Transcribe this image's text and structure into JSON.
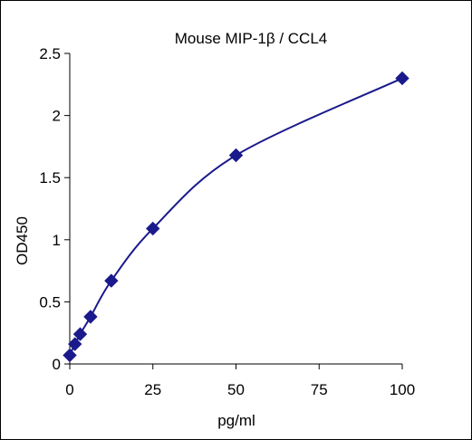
{
  "chart_data": {
    "type": "scatter",
    "title": "Mouse MIP-1β / CCL4",
    "xlabel": "pg/ml",
    "ylabel": "OD450",
    "xlim": [
      0,
      100
    ],
    "ylim": [
      0,
      2.5
    ],
    "xticks": [
      0,
      25,
      50,
      75,
      100
    ],
    "yticks": [
      0,
      0.5,
      1,
      1.5,
      2,
      2.5
    ],
    "grid": false,
    "legend": "none",
    "series": [
      {
        "marker": "diamond",
        "color": "#1a1a8c",
        "smooth_line": true,
        "x": [
          0,
          1.56,
          3.13,
          6.25,
          12.5,
          25,
          50,
          100
        ],
        "y": [
          0.07,
          0.16,
          0.24,
          0.38,
          0.67,
          1.09,
          1.68,
          2.3
        ]
      }
    ]
  }
}
